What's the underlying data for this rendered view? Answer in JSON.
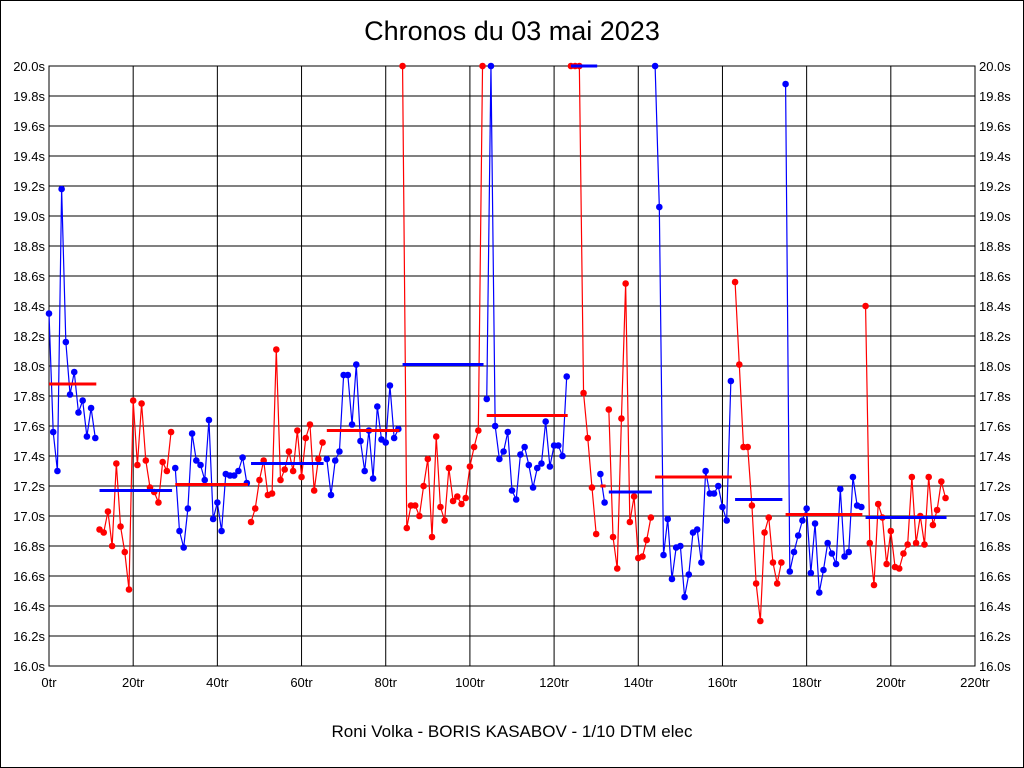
{
  "chart_data": {
    "type": "line",
    "title": "Chronos du 03 mai 2023",
    "footer": "Roni Volka - BORIS KASABOV - 1/10 DTM elec",
    "xlabel": "",
    "ylabel": "",
    "xlim": [
      0,
      220
    ],
    "ylim": [
      16.0,
      20.0
    ],
    "x_ticks": [
      "0tr",
      "20tr",
      "40tr",
      "60tr",
      "80tr",
      "100tr",
      "120tr",
      "140tr",
      "160tr",
      "180tr",
      "200tr",
      "220tr"
    ],
    "y_ticks": [
      "16.0s",
      "16.2s",
      "16.4s",
      "16.6s",
      "16.8s",
      "17.0s",
      "17.2s",
      "17.4s",
      "17.6s",
      "17.8s",
      "18.0s",
      "18.2s",
      "18.4s",
      "18.6s",
      "18.8s",
      "19.0s",
      "19.2s",
      "19.4s",
      "19.6s",
      "19.8s",
      "20.0s"
    ],
    "grid": true,
    "colors": {
      "blue": "#0000ff",
      "red": "#ff0000"
    },
    "stints": [
      {
        "color": "blue",
        "start_lap": 0,
        "values": [
          18.35,
          17.56,
          17.3,
          19.18,
          18.16,
          17.81,
          17.96,
          17.69,
          17.77,
          17.53,
          17.72,
          17.52
        ],
        "average": 17.88
      },
      {
        "color": "red",
        "start_lap": 12,
        "values": [
          16.91,
          16.89,
          17.03,
          16.8,
          17.35,
          16.93,
          16.76,
          16.51,
          17.77,
          17.34,
          17.75,
          17.37,
          17.19,
          17.16,
          17.09,
          17.36,
          17.3,
          17.56
        ],
        "average": 17.17
      },
      {
        "color": "blue",
        "start_lap": 30,
        "values": [
          17.32,
          16.9,
          16.79,
          17.05,
          17.55,
          17.37,
          17.34,
          17.24,
          17.64,
          16.98,
          17.09,
          16.9,
          17.28,
          17.27,
          17.27,
          17.3,
          17.39,
          17.22
        ],
        "average": 17.21
      },
      {
        "color": "red",
        "start_lap": 48,
        "values": [
          16.96,
          17.05,
          17.24,
          17.37,
          17.14,
          17.15,
          18.11,
          17.24,
          17.31,
          17.43,
          17.3,
          17.57,
          17.26,
          17.52,
          17.61,
          17.17,
          17.38,
          17.49
        ],
        "average": 17.35
      },
      {
        "color": "blue",
        "start_lap": 66,
        "values": [
          17.38,
          17.14,
          17.37,
          17.43,
          17.94,
          17.94,
          17.61,
          18.01,
          17.5,
          17.3,
          17.57,
          17.25,
          17.73,
          17.51,
          17.49,
          17.87,
          17.52,
          17.58
        ],
        "average": 17.57
      },
      {
        "color": "red",
        "start_lap": 84,
        "values": [
          20.0,
          16.92,
          17.07,
          17.07,
          17.0,
          17.2,
          17.38,
          16.86,
          17.53,
          17.06,
          16.97,
          17.32,
          17.1,
          17.13,
          17.08,
          17.12,
          17.33,
          17.46,
          17.57,
          20.0
        ],
        "average": 18.01
      },
      {
        "color": "blue",
        "start_lap": 104,
        "values": [
          17.78,
          20.0,
          17.6,
          17.38,
          17.43,
          17.56,
          17.17,
          17.11,
          17.41,
          17.46,
          17.34,
          17.19,
          17.32,
          17.35,
          17.63,
          17.33,
          17.47,
          17.47,
          17.4,
          17.93
        ],
        "average": 17.67
      },
      {
        "color": "red",
        "start_lap": 124,
        "values": [
          20.0,
          20.0,
          20.0,
          17.82,
          17.52,
          17.19,
          16.88
        ],
        "average": 20.0
      },
      {
        "color": "blue",
        "start_lap": 131,
        "values": [
          17.28,
          17.09
        ],
        "average": 17.2
      },
      {
        "color": "red",
        "start_lap": 133,
        "values": [
          17.71,
          16.86,
          16.65,
          17.65,
          18.55,
          16.96,
          17.13,
          16.72,
          16.73,
          16.84,
          16.99
        ],
        "average": 17.16
      },
      {
        "color": "blue",
        "start_lap": 144,
        "values": [
          20.0,
          19.06,
          16.74,
          16.98,
          16.58,
          16.79,
          16.8,
          16.46,
          16.61,
          16.89,
          16.91,
          16.69,
          17.3,
          17.15,
          17.15,
          17.2,
          17.06,
          16.97,
          17.9
        ],
        "average": 17.26
      },
      {
        "color": "red",
        "start_lap": 163,
        "values": [
          18.56,
          18.01,
          17.46,
          17.46,
          17.07,
          16.55,
          16.3,
          16.89,
          16.99,
          16.69,
          16.55,
          16.69
        ],
        "average": 17.11
      },
      {
        "color": "blue",
        "start_lap": 175,
        "values": [
          19.88,
          16.63,
          16.76,
          16.87,
          16.97,
          17.05,
          16.62,
          16.95,
          16.49,
          16.64,
          16.82,
          16.75,
          16.68,
          17.18,
          16.73,
          16.76,
          17.26,
          17.07,
          17.06
        ],
        "average": 17.01
      },
      {
        "color": "red",
        "start_lap": 194,
        "values": [
          18.4,
          16.82,
          16.54,
          17.08,
          16.99,
          16.68,
          16.9,
          16.66,
          16.65,
          16.75,
          16.81,
          17.26,
          16.82,
          17.0,
          16.81,
          17.26,
          16.94,
          17.04,
          17.23,
          17.12
        ],
        "average": 16.99
      }
    ]
  }
}
